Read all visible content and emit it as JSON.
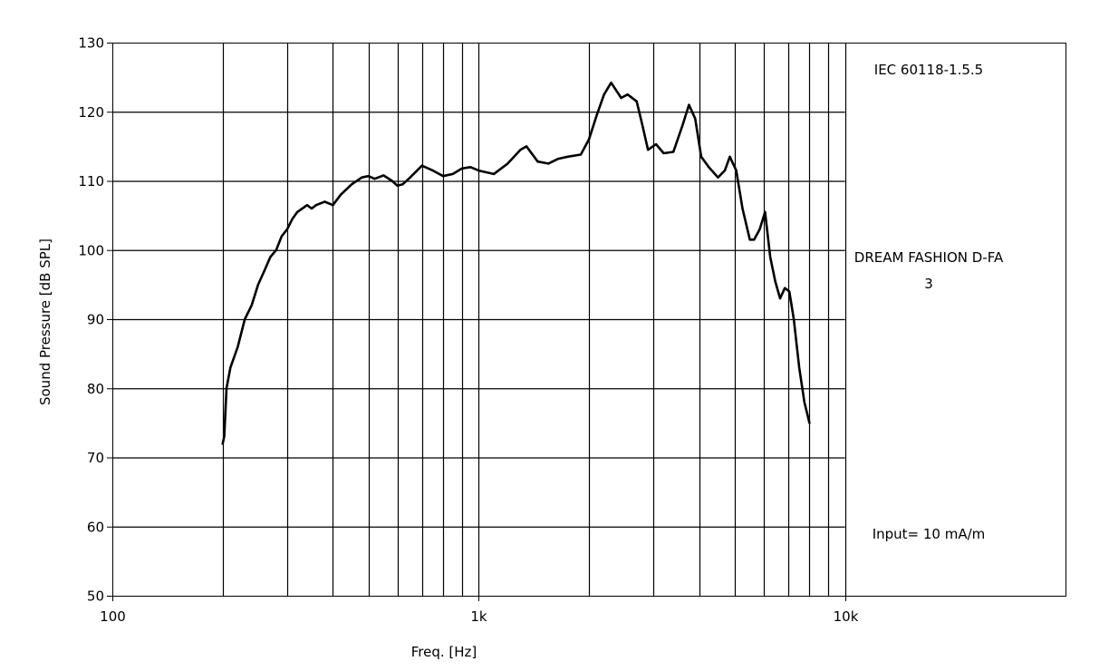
{
  "chart_data": {
    "type": "line",
    "xlabel": "Freq. [Hz]",
    "ylabel": "Sound Pressure [dB SPL]",
    "x_scale": "log",
    "xlim": [
      100,
      40000
    ],
    "ylim": [
      50,
      130
    ],
    "x_ticks": [
      {
        "value": 100,
        "label": "100"
      },
      {
        "value": 1000,
        "label": "1k"
      },
      {
        "value": 10000,
        "label": "10k"
      }
    ],
    "y_ticks": [
      50,
      60,
      70,
      80,
      90,
      100,
      110,
      120,
      130
    ],
    "grid": true,
    "x_gridlines": [
      200,
      300,
      400,
      500,
      600,
      700,
      800,
      900,
      1000,
      2000,
      3000,
      4000,
      5000,
      6000,
      7000,
      8000,
      9000,
      10000
    ],
    "annotations": [
      {
        "text": "IEC 60118-1.5.5"
      },
      {
        "text": "DREAM FASHION D-FA"
      },
      {
        "text": "3"
      },
      {
        "text": "Input= 10 mA/m"
      }
    ],
    "series": [
      {
        "color": "#000000",
        "x": [
          200,
          202,
          205,
          210,
          220,
          230,
          240,
          250,
          260,
          270,
          280,
          290,
          300,
          310,
          320,
          330,
          340,
          350,
          360,
          380,
          400,
          420,
          450,
          480,
          500,
          520,
          550,
          580,
          600,
          620,
          650,
          700,
          750,
          800,
          850,
          900,
          950,
          1000,
          1100,
          1200,
          1300,
          1350,
          1450,
          1550,
          1650,
          1750,
          1900,
          2000,
          2100,
          2200,
          2300,
          2450,
          2550,
          2700,
          2800,
          2900,
          3050,
          3200,
          3400,
          3600,
          3750,
          3900,
          4050,
          4250,
          4500,
          4700,
          4850,
          5050,
          5250,
          5500,
          5650,
          5850,
          6050,
          6250,
          6450,
          6650,
          6850,
          7050,
          7250,
          7500,
          7750,
          8000
        ],
        "y": [
          72,
          73,
          80,
          83,
          86,
          90,
          92,
          95,
          97,
          99,
          100,
          102,
          103,
          104.5,
          105.5,
          106,
          106.5,
          106,
          106.5,
          107,
          106.5,
          108,
          109.5,
          110.5,
          110.7,
          110.3,
          110.8,
          110,
          109.3,
          109.5,
          110.5,
          112.2,
          111.5,
          110.7,
          111,
          111.8,
          112,
          111.5,
          111,
          112.5,
          114.5,
          115,
          112.8,
          112.5,
          113.2,
          113.5,
          113.8,
          116,
          119.5,
          122.5,
          124.2,
          122,
          122.5,
          121.5,
          118,
          114.5,
          115.3,
          114,
          114.2,
          118,
          121,
          119,
          113.5,
          112,
          110.5,
          111.5,
          113.5,
          111.5,
          106,
          101.5,
          101.5,
          103,
          105.5,
          99,
          95.5,
          93,
          94.5,
          94,
          90,
          83,
          78,
          75
        ]
      }
    ]
  }
}
